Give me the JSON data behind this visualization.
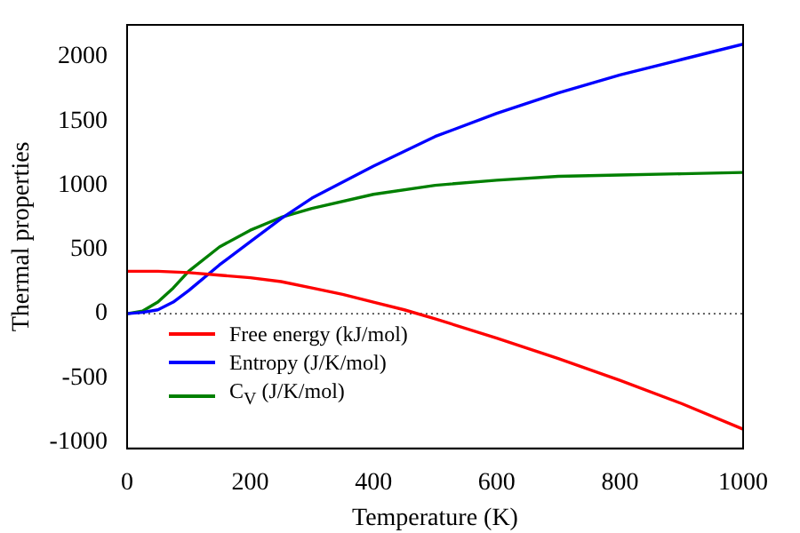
{
  "chart_data": {
    "type": "line",
    "xlabel": "Temperature (K)",
    "ylabel": "Thermal properties",
    "xlim": [
      0,
      1000
    ],
    "xticks": [
      0,
      200,
      400,
      600,
      800,
      1000
    ],
    "ylim": [
      -1050,
      2250
    ],
    "yticks": [
      -1000,
      -500,
      0,
      500,
      1000,
      1500,
      2000
    ],
    "grid": false,
    "legend": "bottom left",
    "marker": "none",
    "line_style": "solid",
    "ref_lines": [
      {
        "axis": "y",
        "value": 0,
        "color": "#000000",
        "line_style": "dotted"
      }
    ],
    "series": [
      {
        "name": "Free energy (kJ/mol)",
        "color": "#ff0000",
        "x": [
          0,
          50,
          100,
          150,
          200,
          250,
          300,
          350,
          400,
          450,
          500,
          600,
          700,
          800,
          900,
          1000
        ],
        "values": [
          330,
          330,
          320,
          300,
          280,
          250,
          200,
          150,
          90,
          30,
          -40,
          -190,
          -350,
          -520,
          -700,
          -900
        ]
      },
      {
        "name": "Entropy (J/K/mol)",
        "color": "#0000ff",
        "x": [
          0,
          25,
          50,
          75,
          100,
          150,
          200,
          250,
          300,
          400,
          500,
          600,
          700,
          800,
          900,
          1000
        ],
        "values": [
          0,
          10,
          30,
          90,
          180,
          380,
          560,
          740,
          900,
          1150,
          1380,
          1560,
          1720,
          1860,
          1980,
          2100
        ]
      },
      {
        "name": "C$_{V}$ (J/K/mol)",
        "color": "#008000",
        "x": [
          0,
          25,
          50,
          75,
          100,
          150,
          200,
          250,
          300,
          400,
          500,
          600,
          700,
          800,
          900,
          1000
        ],
        "values": [
          0,
          20,
          90,
          200,
          330,
          520,
          650,
          750,
          820,
          930,
          1000,
          1040,
          1070,
          1080,
          1090,
          1100
        ]
      }
    ]
  }
}
